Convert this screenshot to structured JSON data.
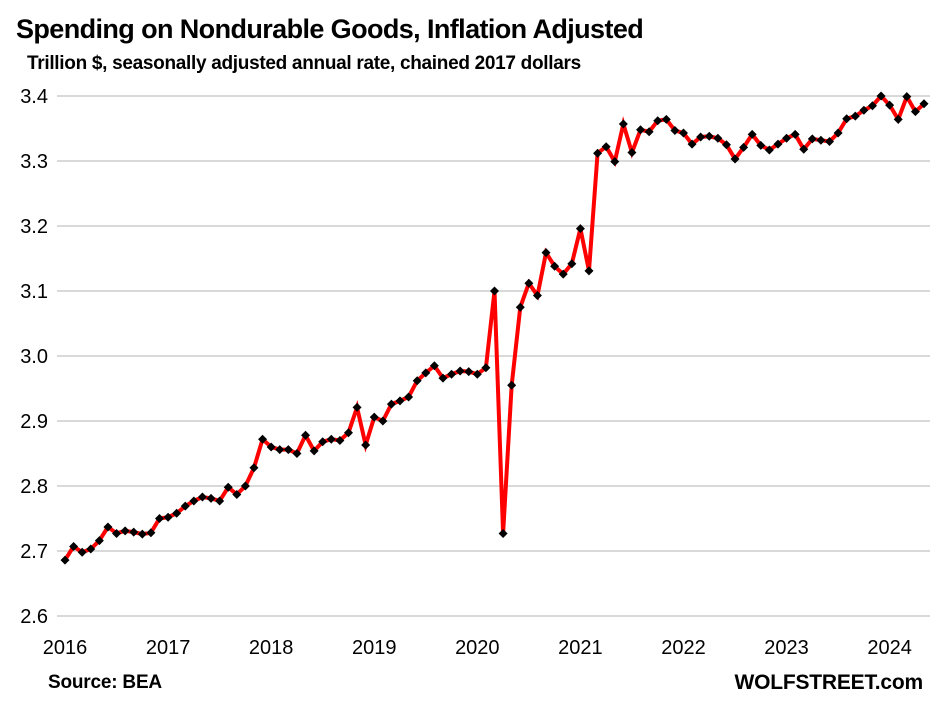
{
  "header": {
    "title": "Spending on Nondurable Goods, Inflation Adjusted",
    "subtitle": "Trillion $, seasonally adjusted annual rate, chained 2017 dollars"
  },
  "footer": {
    "source_label": "Source: BEA",
    "brand_label": "WOLFSTREET.com"
  },
  "chart_data": {
    "type": "line",
    "title": "Spending on Nondurable Goods, Inflation Adjusted",
    "subtitle": "Trillion $, seasonally adjusted annual rate, chained 2017 dollars",
    "source": "Source: BEA",
    "brand": "WOLFSTREET.com",
    "frequency": "monthly",
    "x_start": "2016-01",
    "x_end": "2024-05",
    "x_tick_years": [
      2016,
      2017,
      2018,
      2019,
      2020,
      2021,
      2022,
      2023,
      2024
    ],
    "y_ticks": [
      2.6,
      2.7,
      2.8,
      2.9,
      3.0,
      3.1,
      3.2,
      3.3,
      3.4
    ],
    "ylim": [
      2.6,
      3.4
    ],
    "grid": "horizontal",
    "legend": "none",
    "line_color": "#FF0000",
    "marker_color": "#000000",
    "marker_shape": "diamond",
    "gridline_color": "#D9D9D9",
    "series": [
      {
        "name": "Real spending on nondurable goods, trillion chained 2017 dollars, SAAR",
        "values": [
          2.686,
          2.707,
          2.698,
          2.703,
          2.716,
          2.737,
          2.727,
          2.731,
          2.729,
          2.726,
          2.728,
          2.75,
          2.752,
          2.758,
          2.769,
          2.777,
          2.783,
          2.781,
          2.777,
          2.798,
          2.787,
          2.8,
          2.828,
          2.872,
          2.86,
          2.856,
          2.856,
          2.85,
          2.878,
          2.854,
          2.868,
          2.872,
          2.87,
          2.882,
          2.921,
          2.863,
          2.906,
          2.9,
          2.926,
          2.931,
          2.937,
          2.962,
          2.974,
          2.985,
          2.966,
          2.972,
          2.977,
          2.976,
          2.972,
          2.982,
          3.1,
          2.727,
          2.955,
          3.075,
          3.112,
          3.093,
          3.159,
          3.138,
          3.126,
          3.142,
          3.196,
          3.131,
          3.312,
          3.322,
          3.299,
          3.357,
          3.313,
          3.348,
          3.345,
          3.362,
          3.364,
          3.347,
          3.343,
          3.326,
          3.337,
          3.338,
          3.335,
          3.325,
          3.303,
          3.321,
          3.341,
          3.324,
          3.317,
          3.326,
          3.335,
          3.341,
          3.318,
          3.334,
          3.332,
          3.33,
          3.343,
          3.365,
          3.369,
          3.378,
          3.385,
          3.4,
          3.386,
          3.364,
          3.399,
          3.376,
          3.388
        ]
      }
    ]
  }
}
